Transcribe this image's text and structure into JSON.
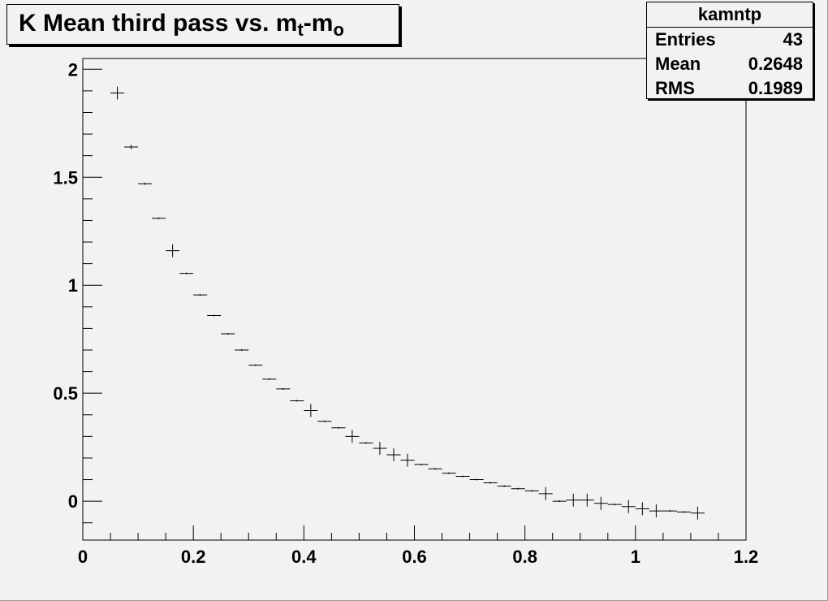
{
  "title": {
    "main": "K Mean third pass vs. m",
    "sub1": "t",
    "mid": "-m",
    "sub2": "o"
  },
  "stats": {
    "name": "kamntp",
    "rows": [
      {
        "label": "Entries",
        "value": "43"
      },
      {
        "label": "Mean",
        "value": "0.2648"
      },
      {
        "label": "RMS",
        "value": "0.1989"
      }
    ]
  },
  "chart_data": {
    "type": "scatter",
    "title": "K Mean third pass vs. mt-mo",
    "xlim": [
      0,
      1.2
    ],
    "ylim": [
      -0.18,
      2.05
    ],
    "x_ticks": [
      {
        "value": 0,
        "label": "0"
      },
      {
        "value": 0.2,
        "label": "0.2"
      },
      {
        "value": 0.4,
        "label": "0.4"
      },
      {
        "value": 0.6,
        "label": "0.6"
      },
      {
        "value": 0.8,
        "label": "0.8"
      },
      {
        "value": 1.0,
        "label": "1"
      },
      {
        "value": 1.2,
        "label": "1.2"
      }
    ],
    "y_ticks": [
      {
        "value": 0,
        "label": "0"
      },
      {
        "value": 0.5,
        "label": "0.5"
      },
      {
        "value": 1.0,
        "label": "1"
      },
      {
        "value": 1.5,
        "label": "1.5"
      },
      {
        "value": 2.0,
        "label": "2"
      }
    ],
    "bin_width": 0.025,
    "points": [
      {
        "x": 0.0625,
        "y": 1.89,
        "err": 0.03
      },
      {
        "x": 0.0875,
        "y": 1.64,
        "err": 0.01
      },
      {
        "x": 0.1125,
        "y": 1.47,
        "err": 0.005
      },
      {
        "x": 0.1375,
        "y": 1.31,
        "err": 0.004
      },
      {
        "x": 0.1625,
        "y": 1.16,
        "err": 0.03
      },
      {
        "x": 0.1875,
        "y": 1.055,
        "err": 0.004
      },
      {
        "x": 0.2125,
        "y": 0.955,
        "err": 0.004
      },
      {
        "x": 0.2375,
        "y": 0.86,
        "err": 0.004
      },
      {
        "x": 0.2625,
        "y": 0.775,
        "err": 0.004
      },
      {
        "x": 0.2875,
        "y": 0.7,
        "err": 0.004
      },
      {
        "x": 0.3125,
        "y": 0.63,
        "err": 0.004
      },
      {
        "x": 0.3375,
        "y": 0.565,
        "err": 0.004
      },
      {
        "x": 0.3625,
        "y": 0.52,
        "err": 0.004
      },
      {
        "x": 0.3875,
        "y": 0.465,
        "err": 0.004
      },
      {
        "x": 0.4125,
        "y": 0.42,
        "err": 0.03
      },
      {
        "x": 0.4375,
        "y": 0.37,
        "err": 0.004
      },
      {
        "x": 0.4625,
        "y": 0.34,
        "err": 0.004
      },
      {
        "x": 0.4875,
        "y": 0.3,
        "err": 0.03
      },
      {
        "x": 0.5125,
        "y": 0.27,
        "err": 0.004
      },
      {
        "x": 0.5375,
        "y": 0.245,
        "err": 0.03
      },
      {
        "x": 0.5625,
        "y": 0.215,
        "err": 0.03
      },
      {
        "x": 0.5875,
        "y": 0.19,
        "err": 0.03
      },
      {
        "x": 0.6125,
        "y": 0.17,
        "err": 0.004
      },
      {
        "x": 0.6375,
        "y": 0.15,
        "err": 0.004
      },
      {
        "x": 0.6625,
        "y": 0.13,
        "err": 0.004
      },
      {
        "x": 0.6875,
        "y": 0.115,
        "err": 0.004
      },
      {
        "x": 0.7125,
        "y": 0.1,
        "err": 0.004
      },
      {
        "x": 0.7375,
        "y": 0.085,
        "err": 0.004
      },
      {
        "x": 0.7625,
        "y": 0.07,
        "err": 0.004
      },
      {
        "x": 0.7875,
        "y": 0.058,
        "err": 0.004
      },
      {
        "x": 0.8125,
        "y": 0.048,
        "err": 0.004
      },
      {
        "x": 0.8375,
        "y": 0.035,
        "err": 0.03
      },
      {
        "x": 0.8625,
        "y": 0.0,
        "err": 0.004
      },
      {
        "x": 0.8875,
        "y": 0.005,
        "err": 0.03
      },
      {
        "x": 0.9125,
        "y": 0.005,
        "err": 0.03
      },
      {
        "x": 0.9375,
        "y": -0.01,
        "err": 0.03
      },
      {
        "x": 0.9625,
        "y": -0.015,
        "err": 0.004
      },
      {
        "x": 0.9875,
        "y": -0.025,
        "err": 0.03
      },
      {
        "x": 1.0125,
        "y": -0.035,
        "err": 0.03
      },
      {
        "x": 1.0375,
        "y": -0.045,
        "err": 0.03
      },
      {
        "x": 1.0625,
        "y": -0.045,
        "err": 0.004
      },
      {
        "x": 1.0875,
        "y": -0.05,
        "err": 0.004
      },
      {
        "x": 1.1125,
        "y": -0.055,
        "err": 0.03
      }
    ]
  }
}
